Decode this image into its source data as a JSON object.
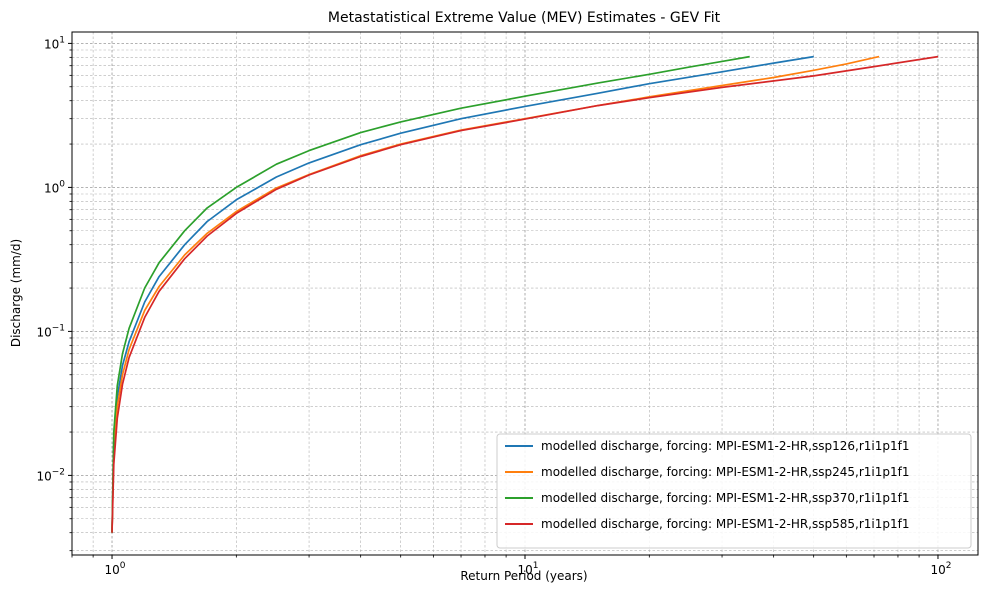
{
  "chart_data": {
    "type": "line",
    "title": "Metastatistical Extreme Value (MEV) Estimates - GEV Fit",
    "xlabel": "Return Period (years)",
    "ylabel": "Discharge (mm/d)",
    "xscale": "log",
    "yscale": "log",
    "xlim": [
      0.8,
      125
    ],
    "ylim": [
      0.0028,
      12
    ],
    "grid": true,
    "legend_position": "lower-right",
    "x_ticks": [
      {
        "value": 1,
        "base": "10",
        "exp": "0"
      },
      {
        "value": 10,
        "base": "10",
        "exp": "1"
      },
      {
        "value": 100,
        "base": "10",
        "exp": "2"
      }
    ],
    "y_ticks": [
      {
        "value": 0.01,
        "base": "10",
        "exp": "−2"
      },
      {
        "value": 0.1,
        "base": "10",
        "exp": "−1"
      },
      {
        "value": 1,
        "base": "10",
        "exp": "0"
      },
      {
        "value": 10,
        "base": "10",
        "exp": "1"
      }
    ],
    "series": [
      {
        "name": "modelled discharge, forcing: MPI-ESM1-2-HR,ssp126,r1i1p1f1",
        "color": "#1f77b4",
        "x": [
          1.0,
          1.01,
          1.03,
          1.06,
          1.1,
          1.2,
          1.3,
          1.5,
          1.7,
          2,
          2.5,
          3,
          4,
          5,
          7,
          10,
          15,
          20,
          30,
          40,
          50
        ],
        "y": [
          0.004,
          0.017,
          0.035,
          0.058,
          0.085,
          0.16,
          0.24,
          0.4,
          0.58,
          0.82,
          1.18,
          1.48,
          1.98,
          2.38,
          3.0,
          3.65,
          4.5,
          5.25,
          6.35,
          7.3,
          8.1
        ]
      },
      {
        "name": "modelled discharge, forcing: MPI-ESM1-2-HR,ssp245,r1i1p1f1",
        "color": "#ff7f0e",
        "x": [
          1.0,
          1.01,
          1.03,
          1.06,
          1.1,
          1.2,
          1.3,
          1.5,
          1.7,
          2,
          2.5,
          3,
          4,
          5,
          7,
          10,
          15,
          20,
          30,
          40,
          50,
          60,
          72
        ],
        "y": [
          0.004,
          0.015,
          0.03,
          0.05,
          0.075,
          0.14,
          0.205,
          0.34,
          0.48,
          0.68,
          0.99,
          1.23,
          1.66,
          2.0,
          2.5,
          3.0,
          3.7,
          4.25,
          5.1,
          5.8,
          6.5,
          7.2,
          8.1
        ]
      },
      {
        "name": "modelled discharge, forcing: MPI-ESM1-2-HR,ssp370,r1i1p1f1",
        "color": "#2ca02c",
        "x": [
          1.0,
          1.01,
          1.03,
          1.06,
          1.1,
          1.2,
          1.3,
          1.5,
          1.7,
          2,
          2.5,
          3,
          4,
          5,
          7,
          10,
          15,
          20,
          25,
          30,
          35
        ],
        "y": [
          0.004,
          0.02,
          0.042,
          0.07,
          0.105,
          0.2,
          0.3,
          0.5,
          0.72,
          1.0,
          1.45,
          1.8,
          2.4,
          2.85,
          3.55,
          4.3,
          5.3,
          6.1,
          6.85,
          7.5,
          8.1
        ]
      },
      {
        "name": "modelled discharge, forcing: MPI-ESM1-2-HR,ssp585,r1i1p1f1",
        "color": "#d62728",
        "x": [
          1.0,
          1.01,
          1.03,
          1.06,
          1.1,
          1.2,
          1.3,
          1.5,
          1.7,
          2,
          2.5,
          3,
          4,
          5,
          7,
          10,
          15,
          20,
          30,
          50,
          70,
          100
        ],
        "y": [
          0.004,
          0.012,
          0.025,
          0.043,
          0.066,
          0.125,
          0.19,
          0.32,
          0.46,
          0.66,
          0.97,
          1.22,
          1.64,
          1.98,
          2.48,
          2.98,
          3.7,
          4.2,
          4.95,
          5.95,
          6.9,
          8.1
        ]
      }
    ]
  }
}
